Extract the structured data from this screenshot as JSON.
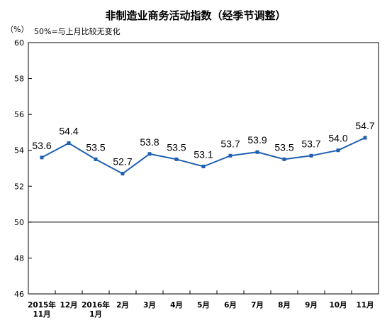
{
  "chart_data": {
    "type": "line",
    "title": "非制造业商务活动指数（经季节调整）",
    "ylabel": "（%）",
    "annotation": "50%=与上月比较无变化",
    "ylim": [
      46,
      60
    ],
    "yticks": [
      60,
      58,
      56,
      54,
      52,
      50,
      48,
      46
    ],
    "reference_line": 50,
    "grid": false,
    "categories": [
      [
        "2015年",
        "11月"
      ],
      [
        "12月"
      ],
      [
        "2016年",
        "1月"
      ],
      [
        "2月"
      ],
      [
        "3月"
      ],
      [
        "4月"
      ],
      [
        "5月"
      ],
      [
        "6月"
      ],
      [
        "7月"
      ],
      [
        "8月"
      ],
      [
        "9月"
      ],
      [
        "10月"
      ],
      [
        "11月"
      ]
    ],
    "values": [
      53.6,
      54.4,
      53.5,
      52.7,
      53.8,
      53.5,
      53.1,
      53.7,
      53.9,
      53.5,
      53.7,
      54.0,
      54.7
    ],
    "data_labels": [
      "53.6",
      "54.4",
      "53.5",
      "52.7",
      "53.8",
      "53.5",
      "53.1",
      "53.7",
      "53.9",
      "53.5",
      "53.7",
      "54.0",
      "54.7"
    ],
    "colors": {
      "line": "#1f5fb0",
      "marker": "#1f5fb0",
      "axis": "#000000"
    }
  }
}
